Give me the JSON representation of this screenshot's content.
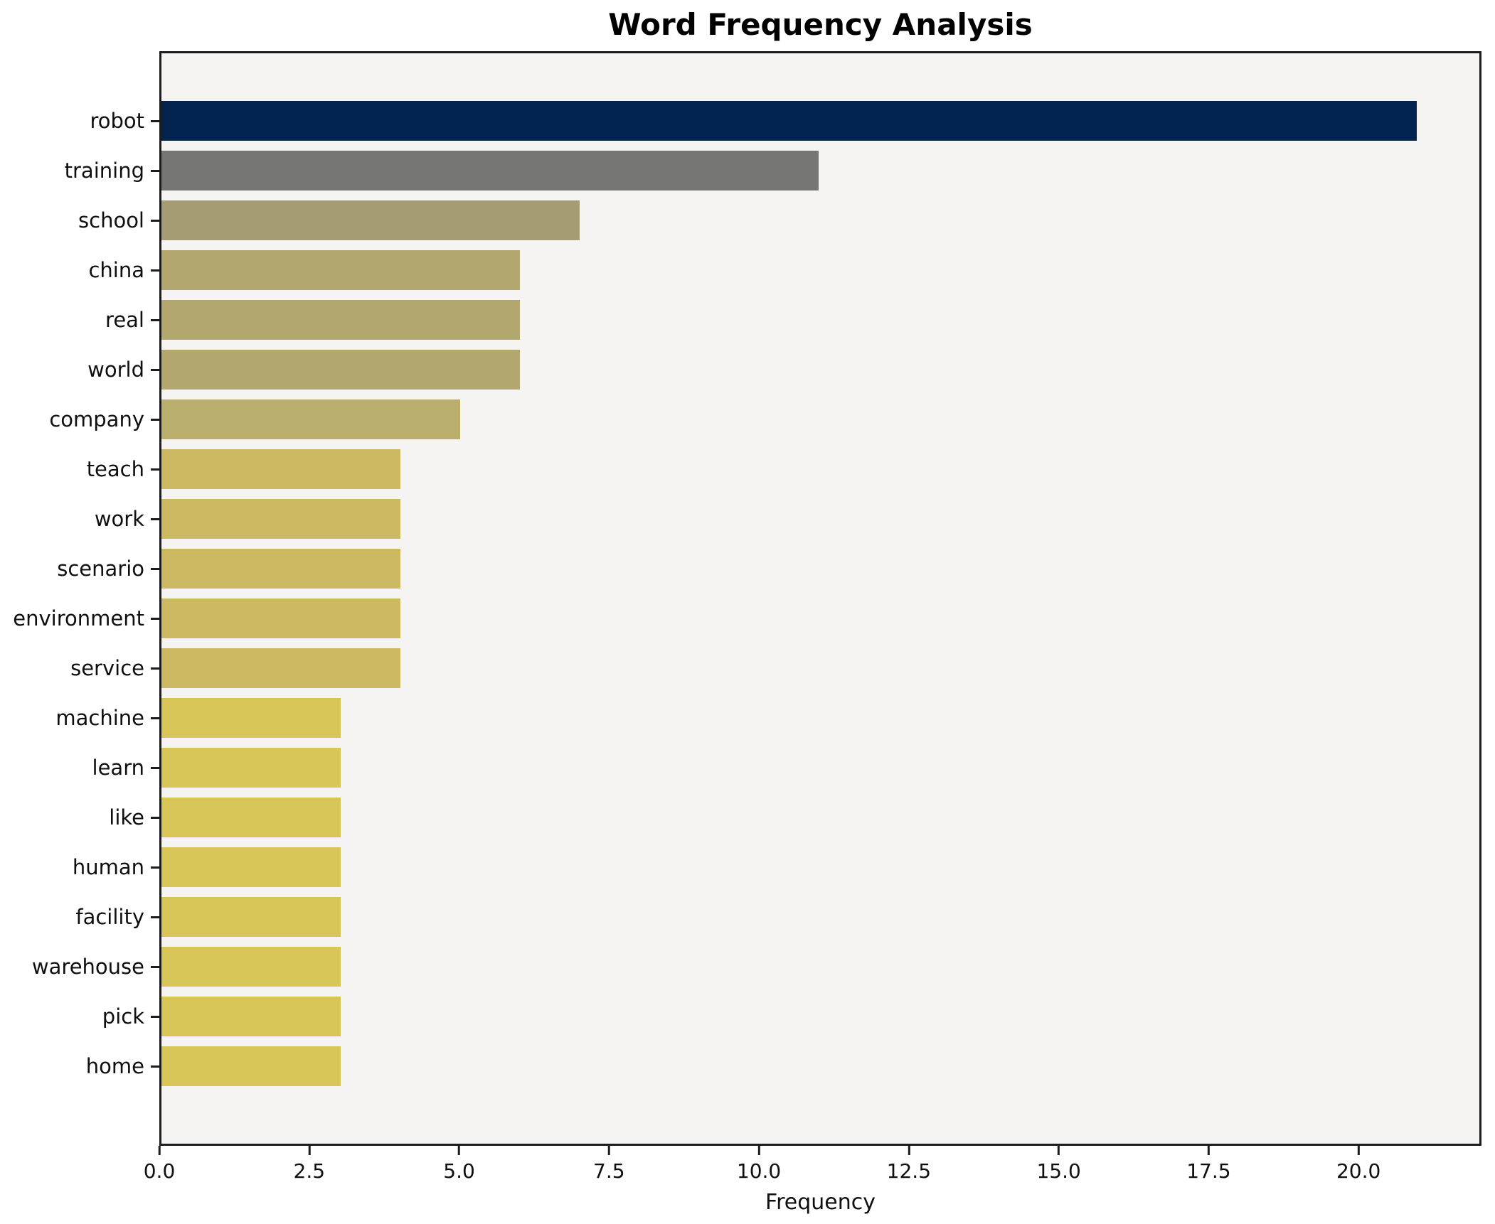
{
  "figure": {
    "background": "#ffffff",
    "axes_background": "#f5f4f2",
    "spine_color": "#1c1c1c",
    "text_color": "#0f0f0f"
  },
  "chart_data": {
    "type": "bar",
    "orientation": "horizontal",
    "title": "Word Frequency Analysis",
    "xlabel": "Frequency",
    "ylabel": "",
    "categories": [
      "robot",
      "training",
      "school",
      "china",
      "real",
      "world",
      "company",
      "teach",
      "work",
      "scenario",
      "environment",
      "service",
      "machine",
      "learn",
      "like",
      "human",
      "facility",
      "warehouse",
      "pick",
      "home"
    ],
    "values": [
      21,
      11,
      7,
      6,
      6,
      6,
      5,
      4,
      4,
      4,
      4,
      4,
      3,
      3,
      3,
      3,
      3,
      3,
      3,
      3
    ],
    "bar_colors": [
      "#01234e",
      "#767675",
      "#a59c74",
      "#b1a76f",
      "#b1a76f",
      "#b1a76f",
      "#b9ae6b",
      "#ccba62",
      "#ccba62",
      "#ccba62",
      "#ccba62",
      "#ccba62",
      "#d8c558",
      "#d8c558",
      "#d8c558",
      "#d8c558",
      "#d8c558",
      "#d8c558",
      "#d8c558",
      "#d8c558"
    ],
    "xlim": [
      0,
      22.05
    ],
    "x_ticks": [
      0,
      2.5,
      5,
      7.5,
      10,
      12.5,
      15,
      17.5,
      20
    ],
    "x_tick_labels": [
      "0.0",
      "2.5",
      "5.0",
      "7.5",
      "10.0",
      "12.5",
      "15.0",
      "17.5",
      "20.0"
    ],
    "grid": false,
    "legend_position": "none",
    "bar_height_fraction": 0.8
  }
}
